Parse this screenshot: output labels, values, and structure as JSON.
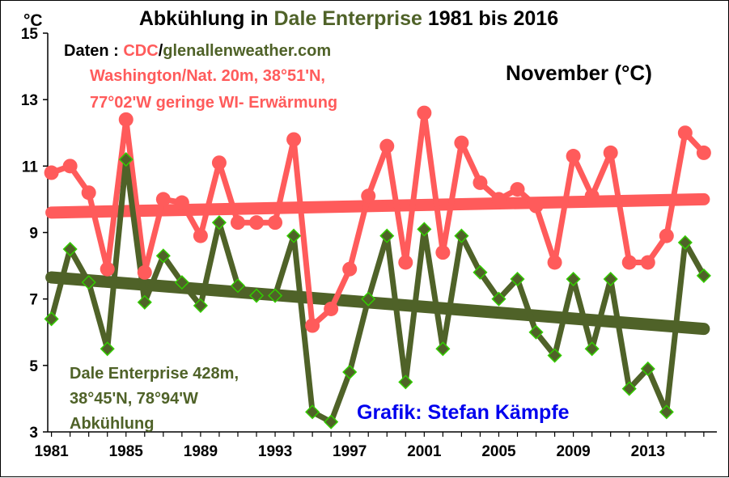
{
  "chart_data": {
    "type": "line",
    "title": {
      "prefix": "Abkühlung in ",
      "highlight": "Dale Enterprise",
      "suffix": " 1981 bis 2016"
    },
    "ylabel": "°C",
    "ylim": [
      3,
      15
    ],
    "yticks": [
      "3",
      "5",
      "7",
      "9",
      "11",
      "13",
      "15"
    ],
    "xlim": [
      1980.8,
      2016.7
    ],
    "xticks": [
      "1981",
      "1985",
      "1989",
      "1993",
      "1997",
      "2001",
      "2005",
      "2009",
      "2013"
    ],
    "grid": false,
    "annotations": {
      "source_prefix": "Daten : ",
      "source_cdc": "CDC",
      "source_slash": "/",
      "source_site": "glenallenweather.com",
      "washington_line1": "Washington/Nat. 20m, 38°51'N,",
      "washington_line2": "77°02'W geringe WI- Erwärmung",
      "month": "November (°C)",
      "dale_line1": "Dale Enterprise 428m,",
      "dale_line2": "38°45'N, 78°94'W",
      "dale_line3": "Abkühlung",
      "credit": "Grafik: Stefan Kämpfe"
    },
    "colors": {
      "washington": "#ff5b5b",
      "dale": "#4f6228",
      "dale_marker": "#33cc00",
      "title_highlight": "#4f6228",
      "credit": "#0000ee"
    },
    "series": [
      {
        "key": "washington",
        "x": [
          1981,
          1982,
          1983,
          1984,
          1985,
          1986,
          1987,
          1988,
          1989,
          1990,
          1991,
          1992,
          1993,
          1994,
          1995,
          1996,
          1997,
          1998,
          1999,
          2000,
          2001,
          2002,
          2003,
          2004,
          2005,
          2006,
          2007,
          2008,
          2009,
          2010,
          2011,
          2012,
          2013,
          2014,
          2015,
          2016
        ],
        "y": [
          10.8,
          11.0,
          10.2,
          7.9,
          12.4,
          7.8,
          10.0,
          9.9,
          8.9,
          11.1,
          9.3,
          9.3,
          9.3,
          11.8,
          6.2,
          6.7,
          7.9,
          10.1,
          11.6,
          8.1,
          12.6,
          8.4,
          11.7,
          10.5,
          10.0,
          10.3,
          9.8,
          8.1,
          11.3,
          10.1,
          11.4,
          8.1,
          8.1,
          8.9,
          12.0,
          11.4
        ],
        "trend": [
          9.6,
          10.0
        ]
      },
      {
        "key": "dale",
        "x": [
          1981,
          1982,
          1983,
          1984,
          1985,
          1986,
          1987,
          1988,
          1989,
          1990,
          1991,
          1992,
          1993,
          1994,
          1995,
          1996,
          1997,
          1998,
          1999,
          2000,
          2001,
          2002,
          2003,
          2004,
          2005,
          2006,
          2007,
          2008,
          2009,
          2010,
          2011,
          2012,
          2013,
          2014,
          2015,
          2016
        ],
        "y": [
          6.4,
          8.5,
          7.5,
          5.5,
          11.2,
          6.9,
          8.3,
          7.5,
          6.8,
          9.3,
          7.4,
          7.1,
          7.1,
          8.9,
          3.6,
          3.3,
          4.8,
          7.0,
          8.9,
          4.5,
          9.1,
          5.5,
          8.9,
          7.8,
          7.0,
          7.6,
          6.0,
          5.3,
          7.6,
          5.5,
          7.6,
          4.3,
          4.9,
          3.6,
          8.7,
          7.7
        ],
        "trend": [
          7.65,
          6.1
        ]
      }
    ]
  }
}
